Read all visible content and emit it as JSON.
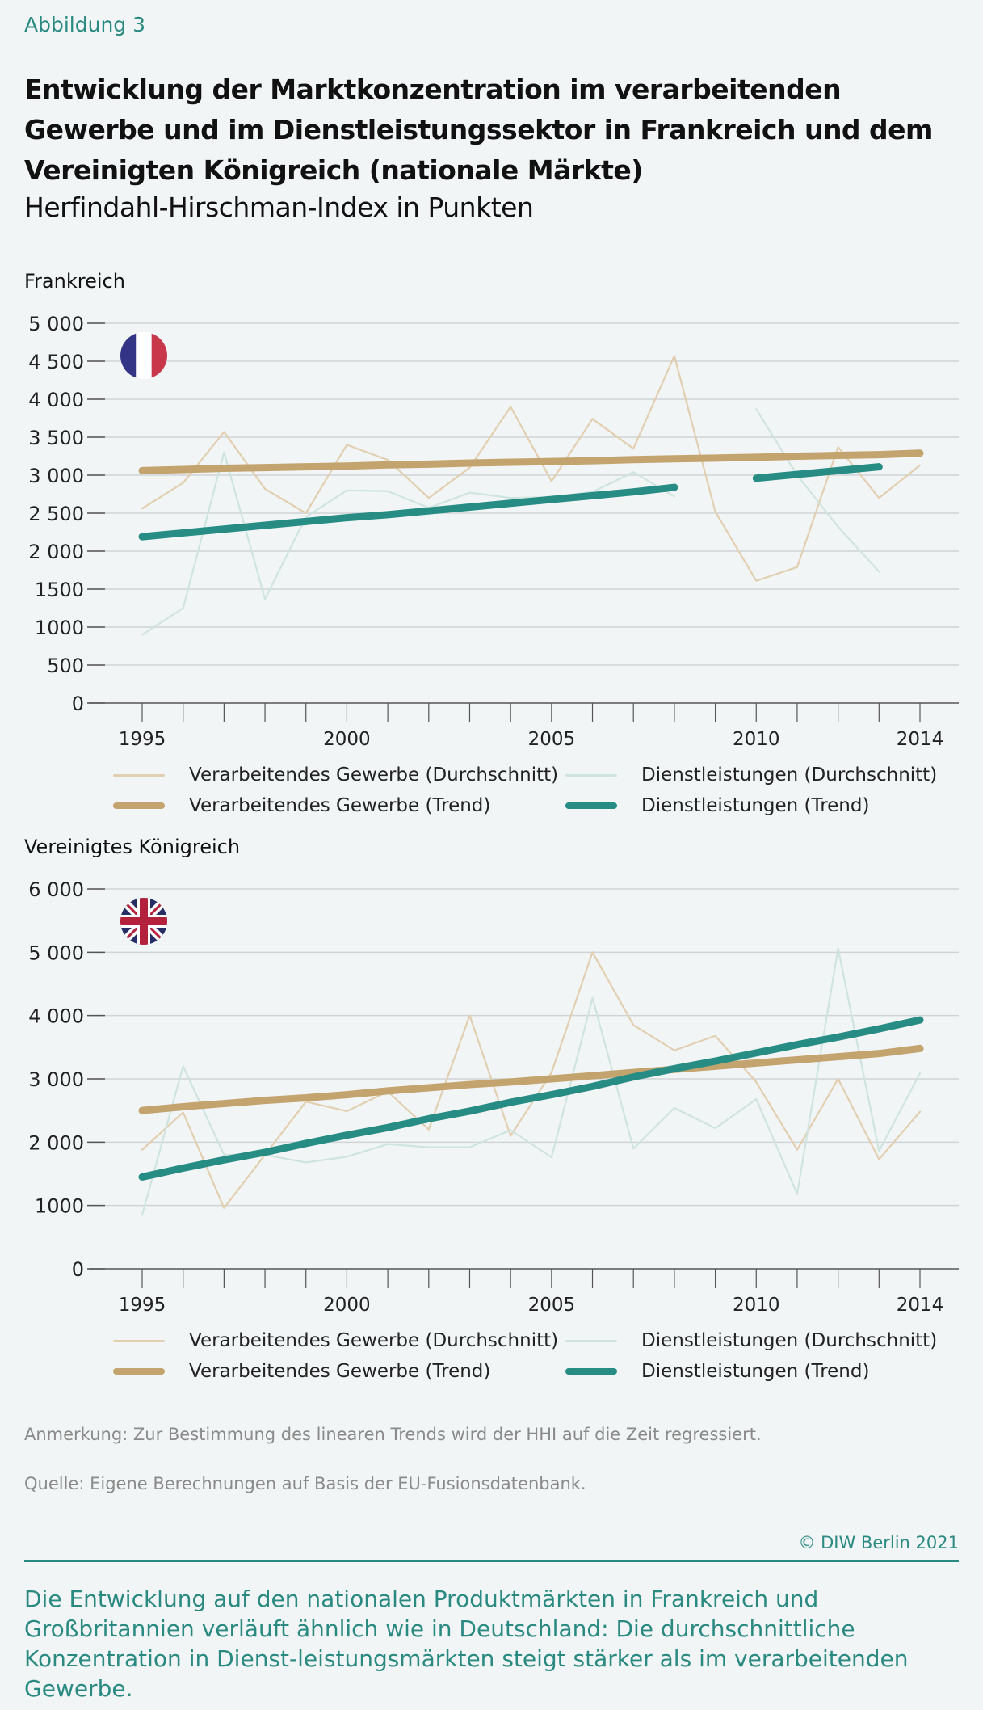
{
  "header": {
    "figure_label": "Abbildung 3",
    "title": "Entwicklung der Marktkonzentration im verarbeitenden Gewerbe und im Dienstleistungssektor in Frankreich und dem Vereinigten Königreich (nationale Märkte)",
    "subtitle": "Herfindahl-Hirschman-Index in Punkten"
  },
  "colors": {
    "manufacturing_avg": "#e2ceb0",
    "manufacturing_trend": "#c4a46e",
    "services_avg": "#cfe4df",
    "services_trend": "#268c84",
    "accent": "#2a8a82"
  },
  "legend": {
    "manufacturing_avg": "Verarbeitendes Gewerbe (Durchschnitt)",
    "services_avg": "Dienstleistungen (Durchschnitt)",
    "manufacturing_trend": "Verarbeitendes Gewerbe (Trend)",
    "services_trend": "Dienstleistungen (Trend)"
  },
  "chart_data": [
    {
      "type": "line",
      "title": "Frankreich",
      "flag": "france-flag",
      "xlabel": "",
      "ylabel": "",
      "x": [
        1995,
        1996,
        1997,
        1998,
        1999,
        2000,
        2001,
        2002,
        2003,
        2004,
        2005,
        2006,
        2007,
        2008,
        2009,
        2010,
        2011,
        2012,
        2013,
        2014
      ],
      "x_tick_labels": [
        "1995",
        "2000",
        "2005",
        "2010",
        "2014"
      ],
      "ylim": [
        0,
        5000
      ],
      "y_ticks": [
        0,
        500,
        1000,
        1500,
        2000,
        2500,
        3000,
        3500,
        4000,
        4500,
        5000
      ],
      "y_tick_labels": [
        "0",
        "500",
        "1000",
        "1500",
        "2 000",
        "2 500",
        "3 000",
        "3 500",
        "4 000",
        "4 500",
        "5 000"
      ],
      "grid": true,
      "legend_position": "bottom",
      "series": [
        {
          "name": "Verarbeitendes Gewerbe (Durchschnitt)",
          "key": "manufacturing_avg",
          "values": [
            2560,
            2900,
            3570,
            2820,
            2500,
            3400,
            3200,
            2700,
            3100,
            3900,
            2920,
            3740,
            3350,
            4570,
            2520,
            1610,
            1790,
            3370,
            2700,
            3130
          ]
        },
        {
          "name": "Dienstleistungen (Durchschnitt)",
          "key": "services_avg",
          "values": [
            900,
            1250,
            3300,
            1370,
            2450,
            2800,
            2790,
            2570,
            2770,
            2700,
            2710,
            2780,
            3040,
            2720,
            null,
            3870,
            3000,
            2320,
            1730,
            null
          ]
        },
        {
          "name": "Verarbeitendes Gewerbe (Trend)",
          "key": "manufacturing_trend",
          "values": [
            3060,
            3075,
            3090,
            3100,
            3110,
            3120,
            3135,
            3145,
            3160,
            3170,
            3180,
            3190,
            3205,
            3215,
            3225,
            3235,
            3250,
            3260,
            3270,
            3290
          ]
        },
        {
          "name": "Dienstleistungen (Trend)",
          "key": "services_trend",
          "values": [
            2190,
            2240,
            2290,
            2340,
            2390,
            2440,
            2480,
            2530,
            2580,
            2630,
            2680,
            2730,
            2780,
            2840,
            null,
            2960,
            3010,
            3060,
            3110,
            null
          ]
        }
      ]
    },
    {
      "type": "line",
      "title": "Vereinigtes Königreich",
      "flag": "uk-flag",
      "xlabel": "",
      "ylabel": "",
      "x": [
        1995,
        1996,
        1997,
        1998,
        1999,
        2000,
        2001,
        2002,
        2003,
        2004,
        2005,
        2006,
        2007,
        2008,
        2009,
        2010,
        2011,
        2012,
        2013,
        2014
      ],
      "x_tick_labels": [
        "1995",
        "2000",
        "2005",
        "2010",
        "2014"
      ],
      "ylim": [
        0,
        6000
      ],
      "y_ticks": [
        0,
        1000,
        2000,
        3000,
        4000,
        5000,
        6000
      ],
      "y_tick_labels": [
        "0",
        "1000",
        "2 000",
        "3 000",
        "4 000",
        "5 000",
        "6 000"
      ],
      "grid": true,
      "legend_position": "bottom",
      "series": [
        {
          "name": "Verarbeitendes Gewerbe (Durchschnitt)",
          "key": "manufacturing_avg",
          "values": [
            1880,
            2470,
            960,
            1800,
            2640,
            2490,
            2800,
            2200,
            4000,
            2100,
            3100,
            5000,
            3850,
            3450,
            3680,
            2950,
            1880,
            3000,
            1730,
            2480
          ]
        },
        {
          "name": "Dienstleistungen (Durchschnitt)",
          "key": "services_avg",
          "values": [
            850,
            3200,
            1800,
            1800,
            1680,
            1770,
            1970,
            1920,
            1920,
            2190,
            1760,
            4280,
            1900,
            2540,
            2220,
            2680,
            1180,
            5060,
            1860,
            3090
          ]
        },
        {
          "name": "Verarbeitendes Gewerbe (Trend)",
          "key": "manufacturing_trend",
          "values": [
            2500,
            2560,
            2610,
            2660,
            2700,
            2750,
            2810,
            2860,
            2910,
            2950,
            3000,
            3050,
            3100,
            3150,
            3200,
            3250,
            3300,
            3350,
            3400,
            3480
          ]
        },
        {
          "name": "Dienstleistungen (Trend)",
          "key": "services_trend",
          "values": [
            1450,
            1590,
            1720,
            1840,
            1980,
            2110,
            2230,
            2370,
            2490,
            2630,
            2750,
            2880,
            3030,
            3160,
            3280,
            3410,
            3540,
            3660,
            3790,
            3930
          ]
        }
      ]
    }
  ],
  "footer": {
    "note": "Anmerkung: Zur Bestimmung des linearen Trends wird der HHI auf die Zeit regressiert.",
    "source": "Quelle: Eigene Berechnungen auf Basis der EU-Fusionsdatenbank.",
    "copyright": "© DIW Berlin 2021",
    "summary": "Die Entwicklung auf den nationalen Produktmärkten in Frankreich und Großbritannien verläuft ähnlich wie in Deutschland: Die durchschnittliche Konzentration in Dienst-leistungsmärkten steigt stärker als im verarbeitenden Gewerbe."
  }
}
